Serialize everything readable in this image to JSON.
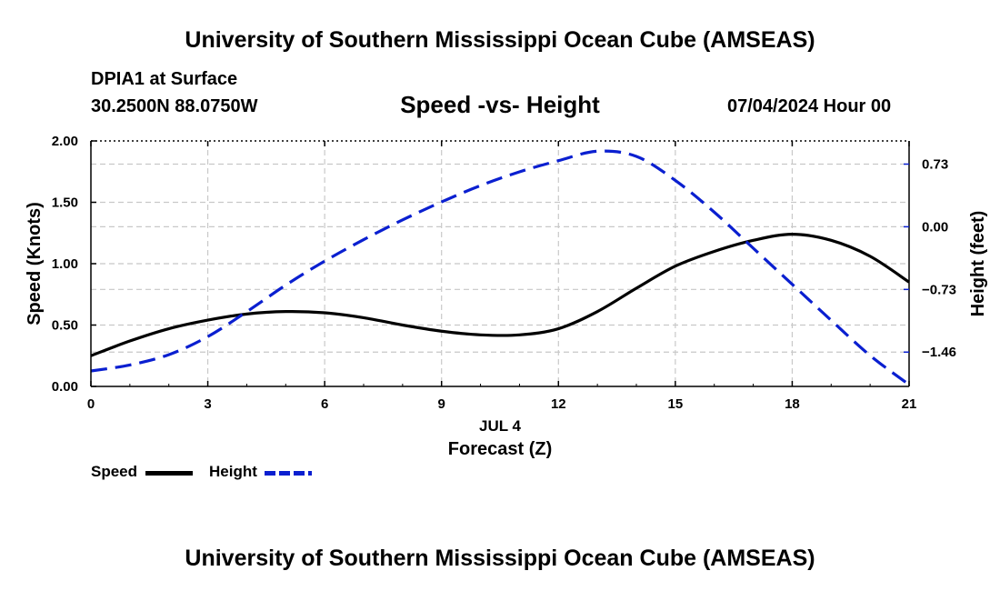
{
  "header": {
    "title": "University of Southern Mississippi Ocean Cube (AMSEAS)",
    "station": "DPIA1 at Surface",
    "coords": "30.2500N  88.0750W",
    "subtitle": "Speed -vs- Height",
    "datetime": "07/04/2024 Hour 00"
  },
  "footer": {
    "title": "University of Southern Mississippi Ocean Cube (AMSEAS)"
  },
  "legend": {
    "items": [
      {
        "label": "Speed",
        "color": "#000000",
        "style": "solid"
      },
      {
        "label": "Height",
        "color": "#0a1fd0",
        "style": "dashed"
      }
    ]
  },
  "chart_data": {
    "type": "line",
    "xlabel": "Forecast (Z)",
    "xsublabel": "JUL 4",
    "ylabel": "Speed (Knots)",
    "y2label": "Height (feet)",
    "xlim": [
      0,
      21
    ],
    "ylim": [
      0,
      2
    ],
    "y2lim": [
      -1.86,
      1.0
    ],
    "xticks": [
      0,
      3,
      6,
      9,
      12,
      15,
      18,
      21
    ],
    "xtick_labels": [
      "0",
      "3",
      "6",
      "9",
      "12",
      "15",
      "18",
      "21"
    ],
    "yticks": [
      0,
      0.5,
      1.0,
      1.5,
      2.0
    ],
    "ytick_labels": [
      "0.00",
      "0.50",
      "1.00",
      "1.50",
      "2.00"
    ],
    "y2ticks": [
      -1.46,
      -0.73,
      0.0,
      0.73
    ],
    "y2tick_labels": [
      "−1.46",
      "−0.73",
      "0.00",
      "0.73"
    ],
    "grid": true,
    "series": [
      {
        "name": "Speed",
        "axis": "left",
        "color": "#000000",
        "style": "solid",
        "x": [
          0,
          1,
          2,
          3,
          4,
          5,
          6,
          7,
          8,
          9,
          10,
          11,
          12,
          13,
          14,
          15,
          16,
          17,
          18,
          19,
          20,
          21
        ],
        "y": [
          0.25,
          0.37,
          0.47,
          0.54,
          0.59,
          0.61,
          0.6,
          0.56,
          0.5,
          0.45,
          0.42,
          0.42,
          0.47,
          0.61,
          0.8,
          0.98,
          1.1,
          1.19,
          1.24,
          1.19,
          1.06,
          0.85
        ]
      },
      {
        "name": "Height",
        "axis": "right",
        "color": "#0a1fd0",
        "style": "dashed",
        "x": [
          0,
          1,
          2,
          3,
          4,
          5,
          6,
          7,
          8,
          9,
          10,
          11,
          12,
          13,
          14,
          15,
          16,
          17,
          18,
          19,
          20,
          21
        ],
        "y": [
          -1.68,
          -1.61,
          -1.49,
          -1.28,
          -0.99,
          -0.68,
          -0.4,
          -0.15,
          0.08,
          0.29,
          0.48,
          0.64,
          0.77,
          0.88,
          0.82,
          0.54,
          0.17,
          -0.25,
          -0.67,
          -1.09,
          -1.5,
          -1.84
        ]
      }
    ]
  }
}
